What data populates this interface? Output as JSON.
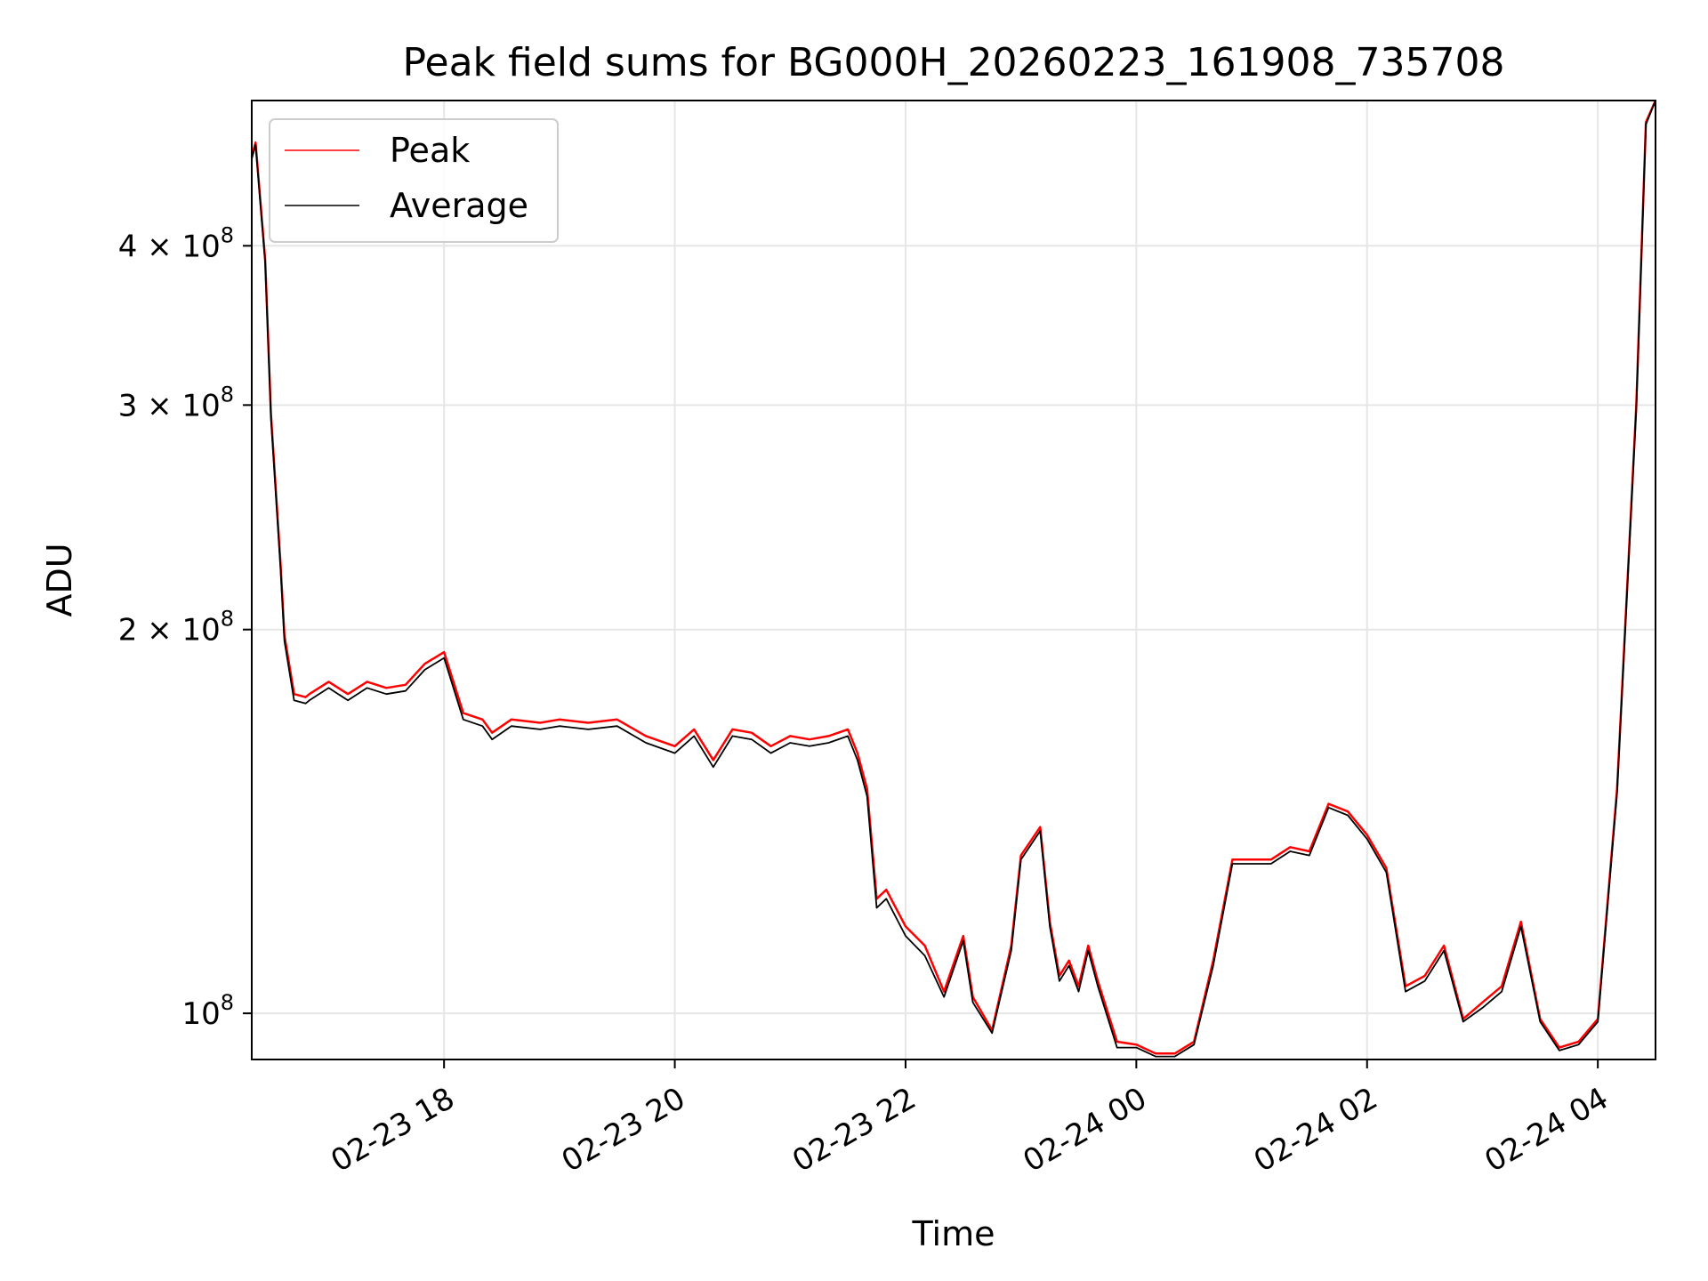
{
  "chart_data": {
    "type": "line",
    "title": "Peak field sums for BG000H_20260223_161908_735708",
    "xlabel": "Time",
    "ylabel": "ADU",
    "yscale": "log",
    "xlim": [
      "2026-02-23 16:20",
      "2026-02-24 04:30"
    ],
    "ylim": [
      92000000,
      520000000
    ],
    "grid": true,
    "legend_position": "upper-left",
    "x_ticks": [
      "2026-02-23 18:00",
      "2026-02-23 20:00",
      "2026-02-23 22:00",
      "2026-02-24 00:00",
      "2026-02-24 02:00",
      "2026-02-24 04:00"
    ],
    "x_tick_labels": [
      "02-23 18",
      "02-23 20",
      "02-23 22",
      "02-24 00",
      "02-24 02",
      "02-24 04"
    ],
    "y_ticks": [
      {
        "value": 100000000,
        "base": "10",
        "exp": "8"
      },
      {
        "value": 200000000,
        "base": "2 × 10",
        "exp": "8"
      },
      {
        "value": 300000000,
        "base": "3 × 10",
        "exp": "8"
      },
      {
        "value": 400000000,
        "base": "4 × 10",
        "exp": "8"
      }
    ],
    "series": [
      {
        "name": "Peak",
        "color": "#ff0000",
        "x": [
          "2026-02-23 16:20",
          "2026-02-23 16:22",
          "2026-02-23 16:27",
          "2026-02-23 16:30",
          "2026-02-23 16:35",
          "2026-02-23 16:37",
          "2026-02-23 16:42",
          "2026-02-23 16:48",
          "2026-02-23 16:50",
          "2026-02-23 17:00",
          "2026-02-23 17:10",
          "2026-02-23 17:20",
          "2026-02-23 17:30",
          "2026-02-23 17:40",
          "2026-02-23 17:50",
          "2026-02-23 18:00",
          "2026-02-23 18:10",
          "2026-02-23 18:20",
          "2026-02-23 18:25",
          "2026-02-23 18:35",
          "2026-02-23 18:50",
          "2026-02-23 19:00",
          "2026-02-23 19:15",
          "2026-02-23 19:30",
          "2026-02-23 19:45",
          "2026-02-23 20:00",
          "2026-02-23 20:10",
          "2026-02-23 20:20",
          "2026-02-23 20:30",
          "2026-02-23 20:40",
          "2026-02-23 20:50",
          "2026-02-23 21:00",
          "2026-02-23 21:10",
          "2026-02-23 21:20",
          "2026-02-23 21:30",
          "2026-02-23 21:35",
          "2026-02-23 21:40",
          "2026-02-23 21:45",
          "2026-02-23 21:50",
          "2026-02-23 22:00",
          "2026-02-23 22:10",
          "2026-02-23 22:20",
          "2026-02-23 22:30",
          "2026-02-23 22:35",
          "2026-02-23 22:45",
          "2026-02-23 22:55",
          "2026-02-23 23:00",
          "2026-02-23 23:10",
          "2026-02-23 23:15",
          "2026-02-23 23:20",
          "2026-02-23 23:25",
          "2026-02-23 23:30",
          "2026-02-23 23:35",
          "2026-02-23 23:40",
          "2026-02-23 23:50",
          "2026-02-24 00:00",
          "2026-02-24 00:10",
          "2026-02-24 00:20",
          "2026-02-24 00:30",
          "2026-02-24 00:40",
          "2026-02-24 00:50",
          "2026-02-24 01:00",
          "2026-02-24 01:10",
          "2026-02-24 01:20",
          "2026-02-24 01:30",
          "2026-02-24 01:40",
          "2026-02-24 01:50",
          "2026-02-24 02:00",
          "2026-02-24 02:10",
          "2026-02-24 02:20",
          "2026-02-24 02:30",
          "2026-02-24 02:40",
          "2026-02-24 02:50",
          "2026-02-24 03:00",
          "2026-02-24 03:10",
          "2026-02-24 03:20",
          "2026-02-24 03:30",
          "2026-02-24 03:40",
          "2026-02-24 03:50",
          "2026-02-24 04:00",
          "2026-02-24 04:10",
          "2026-02-24 04:20",
          "2026-02-24 04:25",
          "2026-02-24 04:30"
        ],
        "values": [
          470000000,
          482000000,
          390000000,
          295000000,
          225000000,
          198000000,
          178000000,
          177000000,
          178000000,
          182000000,
          178000000,
          182000000,
          180000000,
          181000000,
          188000000,
          192000000,
          172000000,
          170000000,
          166000000,
          170000000,
          169000000,
          170000000,
          169000000,
          170000000,
          165000000,
          162000000,
          167000000,
          158000000,
          167000000,
          166000000,
          162000000,
          165000000,
          164000000,
          165000000,
          167000000,
          160000000,
          150000000,
          123000000,
          125000000,
          117000000,
          113000000,
          104000000,
          115000000,
          103000000,
          97000000,
          113000000,
          133000000,
          140000000,
          118000000,
          107000000,
          110000000,
          105000000,
          113000000,
          106000000,
          95000000,
          94500000,
          93000000,
          93000000,
          95000000,
          110000000,
          132000000,
          132000000,
          132000000,
          135000000,
          134000000,
          146000000,
          144000000,
          138000000,
          130000000,
          105000000,
          107000000,
          113000000,
          99000000,
          102000000,
          105000000,
          118000000,
          99000000,
          94000000,
          95000000,
          99000000,
          150000000,
          300000000,
          500000000,
          520000000
        ]
      },
      {
        "name": "Average",
        "color": "#000000",
        "x": [
          "2026-02-23 16:20",
          "2026-02-23 16:22",
          "2026-02-23 16:27",
          "2026-02-23 16:30",
          "2026-02-23 16:35",
          "2026-02-23 16:37",
          "2026-02-23 16:42",
          "2026-02-23 16:48",
          "2026-02-23 16:50",
          "2026-02-23 17:00",
          "2026-02-23 17:10",
          "2026-02-23 17:20",
          "2026-02-23 17:30",
          "2026-02-23 17:40",
          "2026-02-23 17:50",
          "2026-02-23 18:00",
          "2026-02-23 18:10",
          "2026-02-23 18:20",
          "2026-02-23 18:25",
          "2026-02-23 18:35",
          "2026-02-23 18:50",
          "2026-02-23 19:00",
          "2026-02-23 19:15",
          "2026-02-23 19:30",
          "2026-02-23 19:45",
          "2026-02-23 20:00",
          "2026-02-23 20:10",
          "2026-02-23 20:20",
          "2026-02-23 20:30",
          "2026-02-23 20:40",
          "2026-02-23 20:50",
          "2026-02-23 21:00",
          "2026-02-23 21:10",
          "2026-02-23 21:20",
          "2026-02-23 21:30",
          "2026-02-23 21:35",
          "2026-02-23 21:40",
          "2026-02-23 21:45",
          "2026-02-23 21:50",
          "2026-02-23 22:00",
          "2026-02-23 22:10",
          "2026-02-23 22:20",
          "2026-02-23 22:30",
          "2026-02-23 22:35",
          "2026-02-23 22:45",
          "2026-02-23 22:55",
          "2026-02-23 23:00",
          "2026-02-23 23:10",
          "2026-02-23 23:15",
          "2026-02-23 23:20",
          "2026-02-23 23:25",
          "2026-02-23 23:30",
          "2026-02-23 23:35",
          "2026-02-23 23:40",
          "2026-02-23 23:50",
          "2026-02-24 00:00",
          "2026-02-24 00:10",
          "2026-02-24 00:20",
          "2026-02-24 00:30",
          "2026-02-24 00:40",
          "2026-02-24 00:50",
          "2026-02-24 01:00",
          "2026-02-24 01:10",
          "2026-02-24 01:20",
          "2026-02-24 01:30",
          "2026-02-24 01:40",
          "2026-02-24 01:50",
          "2026-02-24 02:00",
          "2026-02-24 02:10",
          "2026-02-24 02:20",
          "2026-02-24 02:30",
          "2026-02-24 02:40",
          "2026-02-24 02:50",
          "2026-02-24 03:00",
          "2026-02-24 03:10",
          "2026-02-24 03:20",
          "2026-02-24 03:30",
          "2026-02-24 03:40",
          "2026-02-24 03:50",
          "2026-02-24 04:00",
          "2026-02-24 04:10",
          "2026-02-24 04:20",
          "2026-02-24 04:25",
          "2026-02-24 04:30"
        ],
        "values": [
          468000000,
          480000000,
          388000000,
          293000000,
          223000000,
          196000000,
          176000000,
          175000000,
          176000000,
          180000000,
          176000000,
          180000000,
          178000000,
          179000000,
          186000000,
          190000000,
          170000000,
          168000000,
          164000000,
          168000000,
          167000000,
          168000000,
          167000000,
          168000000,
          163000000,
          160000000,
          165000000,
          156000000,
          165000000,
          164000000,
          160000000,
          163000000,
          162000000,
          163000000,
          165000000,
          158000000,
          148000000,
          121000000,
          123000000,
          115000000,
          111000000,
          103000000,
          114000000,
          102000000,
          96500000,
          112000000,
          132000000,
          139000000,
          117000000,
          106000000,
          109000000,
          104000000,
          112000000,
          105000000,
          94000000,
          94000000,
          92500000,
          92500000,
          94500000,
          109000000,
          131000000,
          131000000,
          131000000,
          134000000,
          133000000,
          145000000,
          143000000,
          137000000,
          129000000,
          104000000,
          106000000,
          112000000,
          98500000,
          101000000,
          104000000,
          117000000,
          98500000,
          93500000,
          94500000,
          98500000,
          149000000,
          298000000,
          498000000,
          520000000
        ]
      }
    ]
  }
}
